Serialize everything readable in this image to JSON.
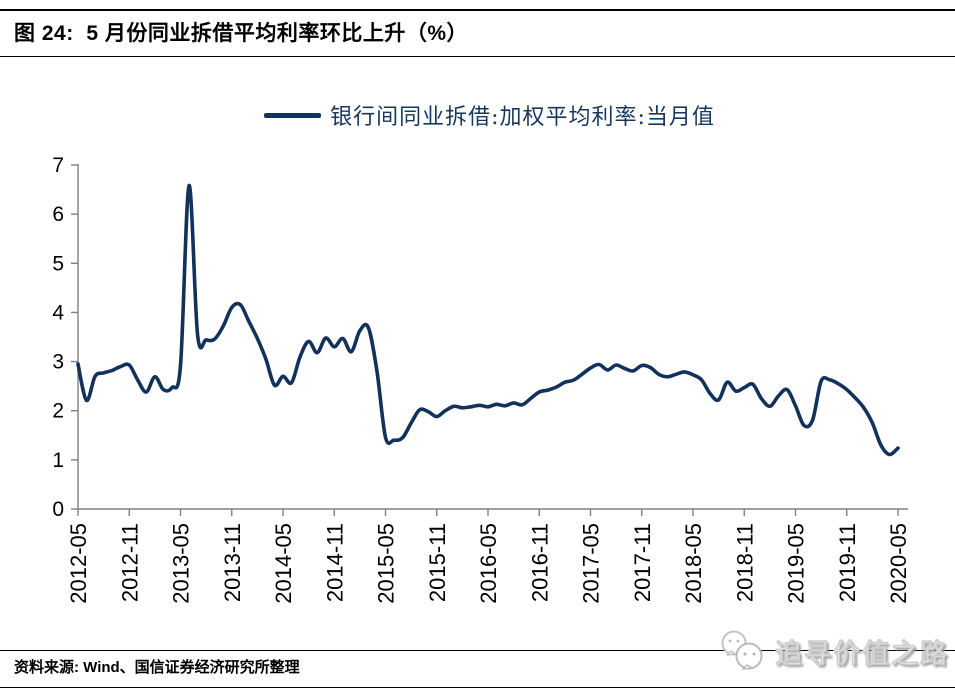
{
  "header": {
    "title": "图 24:  5 月份同业拆借平均利率环比上升（%）"
  },
  "legend": {
    "label": "银行间同业拆借:加权平均利率:当月值"
  },
  "footer": {
    "source": "资料来源: Wind、国信证券经济研究所整理",
    "watermark": "追寻价值之路",
    "watermark_logo": "chat-bubbles-icon"
  },
  "colors": {
    "line": "#12315B",
    "legend_text": "#17375E",
    "axis": "#808080",
    "text": "#000000"
  },
  "chart_data": {
    "type": "line",
    "title": "5 月份同业拆借平均利率环比上升（%）",
    "ylabel": "",
    "xlabel": "",
    "grid": false,
    "legend_position": "top",
    "ylim": [
      0,
      7
    ],
    "y_ticks": [
      0,
      1,
      2,
      3,
      4,
      5,
      6,
      7
    ],
    "x_start": "2012-05",
    "x_end": "2020-05",
    "x_frequency": "monthly",
    "x_tick_labels": [
      "2012-05",
      "2012-11",
      "2013-05",
      "2013-11",
      "2014-05",
      "2014-11",
      "2015-05",
      "2015-11",
      "2016-05",
      "2016-11",
      "2017-05",
      "2017-11",
      "2018-05",
      "2018-11",
      "2019-05",
      "2019-11",
      "2020-05"
    ],
    "x_tick_step_months": 6,
    "series": [
      {
        "name": "银行间同业拆借:加权平均利率:当月值",
        "color": "#12315B",
        "values": [
          2.95,
          2.21,
          2.7,
          2.77,
          2.82,
          2.9,
          2.93,
          2.62,
          2.38,
          2.69,
          2.43,
          2.47,
          2.92,
          6.58,
          3.54,
          3.44,
          3.46,
          3.72,
          4.1,
          4.16,
          3.82,
          3.47,
          3.05,
          2.52,
          2.7,
          2.57,
          3.1,
          3.41,
          3.18,
          3.48,
          3.3,
          3.47,
          3.2,
          3.63,
          3.69,
          2.8,
          1.46,
          1.4,
          1.45,
          1.75,
          2.02,
          1.98,
          1.88,
          2.0,
          2.09,
          2.06,
          2.08,
          2.11,
          2.08,
          2.13,
          2.1,
          2.16,
          2.12,
          2.25,
          2.38,
          2.42,
          2.48,
          2.58,
          2.62,
          2.74,
          2.87,
          2.94,
          2.83,
          2.93,
          2.86,
          2.81,
          2.92,
          2.88,
          2.74,
          2.69,
          2.74,
          2.79,
          2.73,
          2.63,
          2.35,
          2.22,
          2.58,
          2.4,
          2.47,
          2.54,
          2.25,
          2.09,
          2.3,
          2.43,
          2.1,
          1.7,
          1.81,
          2.6,
          2.63,
          2.55,
          2.43,
          2.26,
          2.06,
          1.75,
          1.3,
          1.11,
          1.24
        ]
      }
    ]
  }
}
